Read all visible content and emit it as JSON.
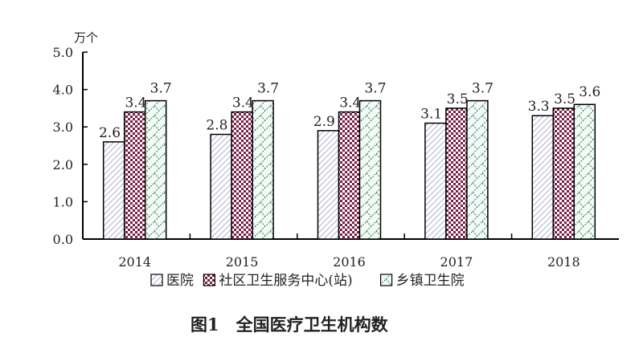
{
  "chart_data": {
    "type": "bar",
    "title": "图1　全国医疗卫生机构数",
    "unit_label": "万个",
    "categories": [
      "2014",
      "2015",
      "2016",
      "2017",
      "2018"
    ],
    "series": [
      {
        "name": "医院",
        "values": [
          2.6,
          2.8,
          2.9,
          3.1,
          3.3
        ],
        "color": "#9b9bc8",
        "pattern": "diagonal"
      },
      {
        "name": "社区卫生服务中心(站)",
        "values": [
          3.4,
          3.4,
          3.4,
          3.5,
          3.5
        ],
        "color": "#7a1f45",
        "pattern": "checker"
      },
      {
        "name": "乡镇卫生院",
        "values": [
          3.7,
          3.7,
          3.7,
          3.7,
          3.6
        ],
        "color": "#2e7d5b",
        "pattern": "crosshatch"
      }
    ],
    "ylim": [
      0,
      5.0
    ],
    "yticks": [
      "0.0",
      "1.0",
      "2.0",
      "3.0",
      "4.0",
      "5.0"
    ],
    "grid": false,
    "legend_position": "bottom"
  }
}
